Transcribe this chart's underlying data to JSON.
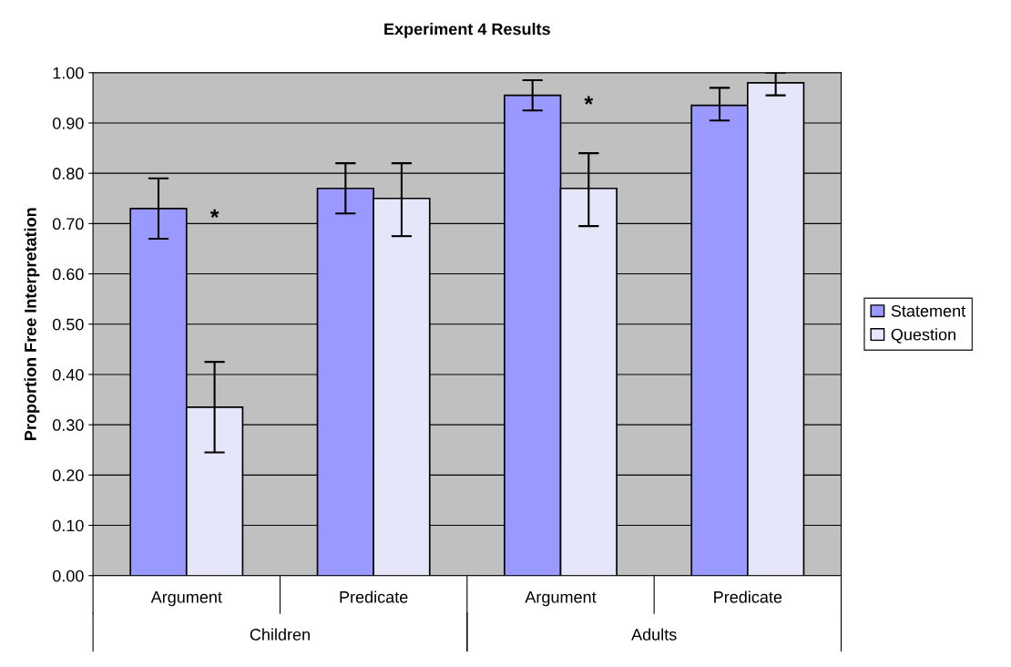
{
  "chart_data": {
    "type": "bar",
    "title": "Experiment 4 Results",
    "ylabel": "Proportion Free Interpretation",
    "categories": [
      "Argument",
      "Predicate",
      "Argument",
      "Predicate"
    ],
    "series": [
      {
        "name": "Statement",
        "color": "#9999ff",
        "values": [
          0.73,
          0.77,
          0.955,
          0.935
        ],
        "errors": [
          [
            0.67,
            0.79
          ],
          [
            0.72,
            0.82
          ],
          [
            0.925,
            0.985
          ],
          [
            0.905,
            0.97
          ]
        ]
      },
      {
        "name": "Question",
        "color": "#e6e6fa",
        "values": [
          0.335,
          0.75,
          0.77,
          0.98
        ],
        "errors": [
          [
            0.245,
            0.425
          ],
          [
            0.675,
            0.82
          ],
          [
            0.695,
            0.84
          ],
          [
            0.955,
            1.0
          ]
        ]
      }
    ],
    "annotations": [
      "*",
      "*",
      "Children",
      "Adults"
    ],
    "ylim": [
      0,
      1
    ],
    "yticks": [
      {
        "value": 0,
        "label": "0.00"
      },
      {
        "value": 0.1,
        "label": "0.10"
      },
      {
        "value": 0.2,
        "label": "0.20"
      },
      {
        "value": 0.3,
        "label": "0.30"
      },
      {
        "value": 0.4,
        "label": "0.40"
      },
      {
        "value": 0.5,
        "label": "0.50"
      },
      {
        "value": 0.6,
        "label": "0.60"
      },
      {
        "value": 0.7,
        "label": "0.70"
      },
      {
        "value": 0.8,
        "label": "0.80"
      },
      {
        "value": 0.9,
        "label": "0.90"
      },
      {
        "value": 1,
        "label": "1.00"
      }
    ],
    "grid": "y",
    "legend": "right"
  }
}
